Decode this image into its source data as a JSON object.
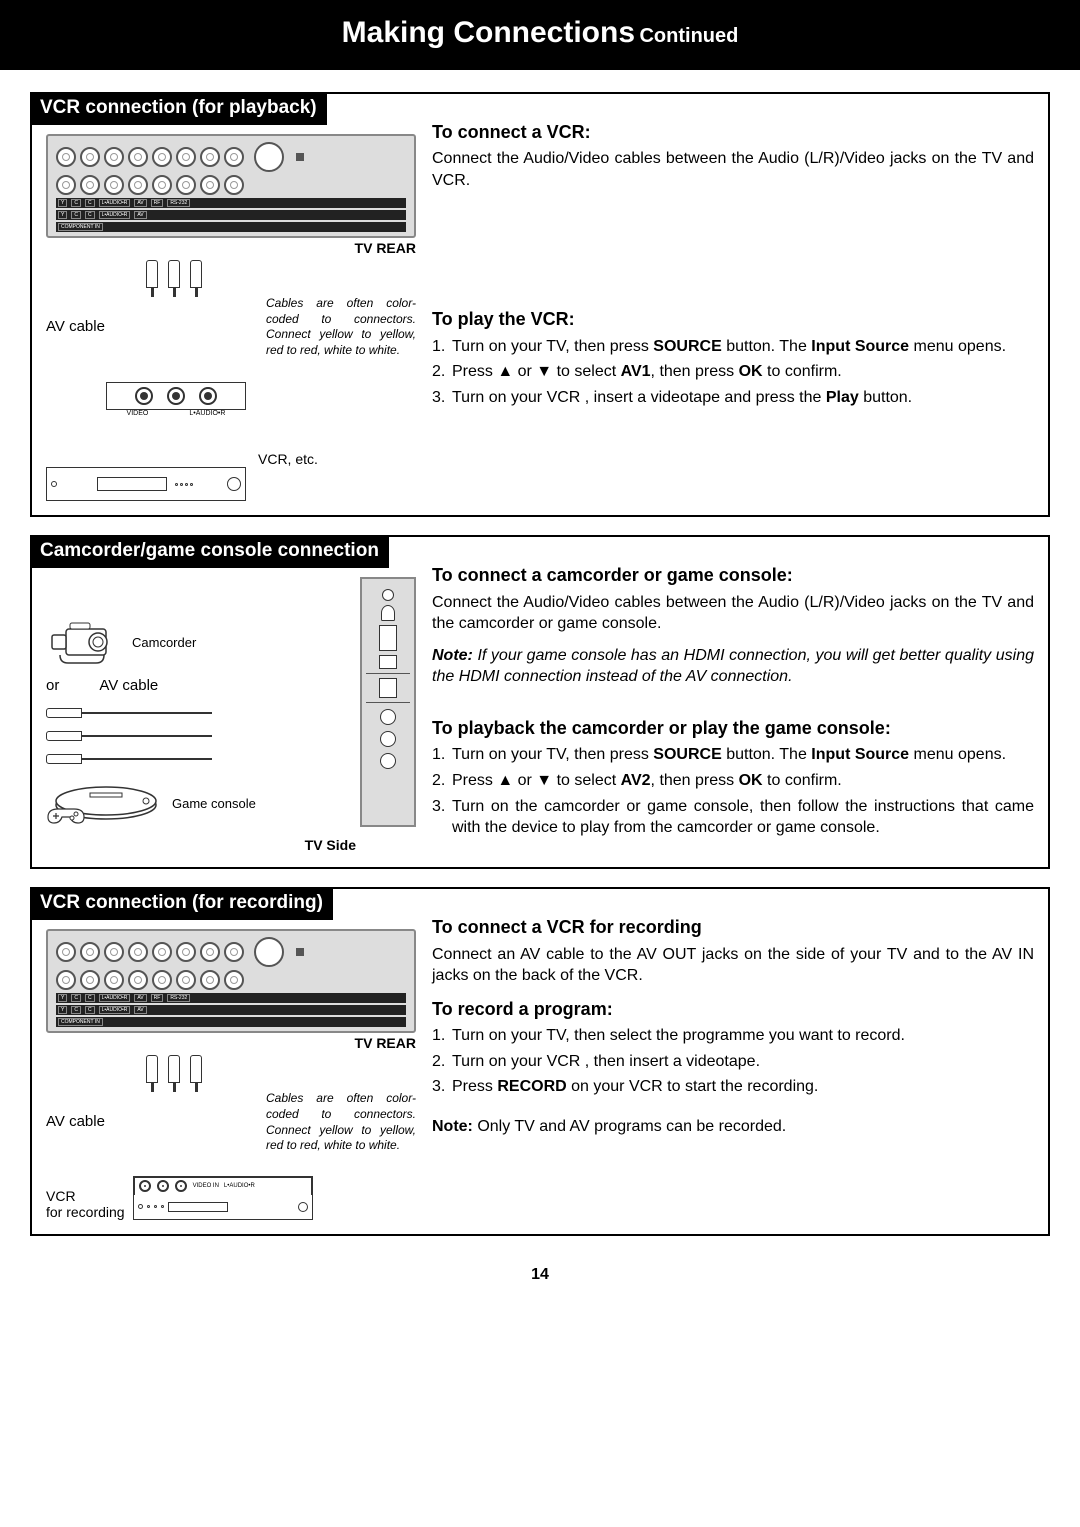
{
  "header": {
    "title": "Making Connections",
    "continued": "Continued"
  },
  "page_number": "14",
  "diagram_labels": {
    "tv_rear": "TV REAR",
    "tv_side": "TV Side",
    "av_cable": "AV cable",
    "vcr_etc": "VCR, etc.",
    "camcorder": "Camcorder",
    "or": "or",
    "game_console": "Game console",
    "vcr_for_recording": "VCR\nfor recording",
    "cable_note": "Cables are often color-coded to connectors. Connect yellow to yellow, red to red, white to white.",
    "video": "VIDEO",
    "audio_lr": "L•AUDIO•R",
    "video_in": "VIDEO IN",
    "component_in": "COMPONENT IN",
    "rf": "RF",
    "rs232": "RS-232"
  },
  "sections": [
    {
      "title": "VCR connection (for playback)",
      "blocks": [
        {
          "h": "To connect a VCR:",
          "p": "Connect the Audio/Video cables between the Audio (L/R)/Video jacks on the TV and VCR."
        },
        {
          "h": "To play the VCR:",
          "list": [
            "Turn on your TV,  then press <b>SOURCE</b> button. The <b>Input Source</b> menu opens.",
            "Press ▲ or ▼ to select <b>AV1</b>, then press <b>OK</b> to confirm.",
            "Turn on your VCR , insert a videotape and press the <b>Play</b> button."
          ]
        }
      ]
    },
    {
      "title": "Camcorder/game console connection",
      "blocks": [
        {
          "h": "To connect a camcorder or game console:",
          "p": "Connect the Audio/Video cables between the Audio (L/R)/Video jacks on the TV and the camcorder or game console.",
          "note": "<b>Note:</b>  If your game console has an HDMI connection, you will get better quality using the HDMI connection instead of the AV connection."
        },
        {
          "h": "To playback the camcorder or play the game console:",
          "list": [
            "Turn on your TV,  then press <b>SOURCE</b> button. The <b>Input Source</b> menu opens.",
            "Press ▲ or ▼ to select <b>AV2</b>, then press <b>OK</b> to confirm.",
            "Turn on the camcorder or game console, then follow the instructions that came with the device to play from the camcorder or game console."
          ]
        }
      ]
    },
    {
      "title": "VCR connection (for recording)",
      "blocks": [
        {
          "h": "To connect a VCR for recording",
          "p": "Connect an AV cable to the AV OUT jacks on the side of your TV and to the AV IN jacks on the back of the VCR."
        },
        {
          "h": "To record a program:",
          "list": [
            "Turn on your TV,  then select the programme you want to record.",
            "Turn on your VCR , then insert a videotape.",
            "Press <b>RECORD</b> on your VCR to start the recording."
          ],
          "after": "<b>Note:</b> Only TV and AV programs can be recorded."
        }
      ]
    }
  ]
}
